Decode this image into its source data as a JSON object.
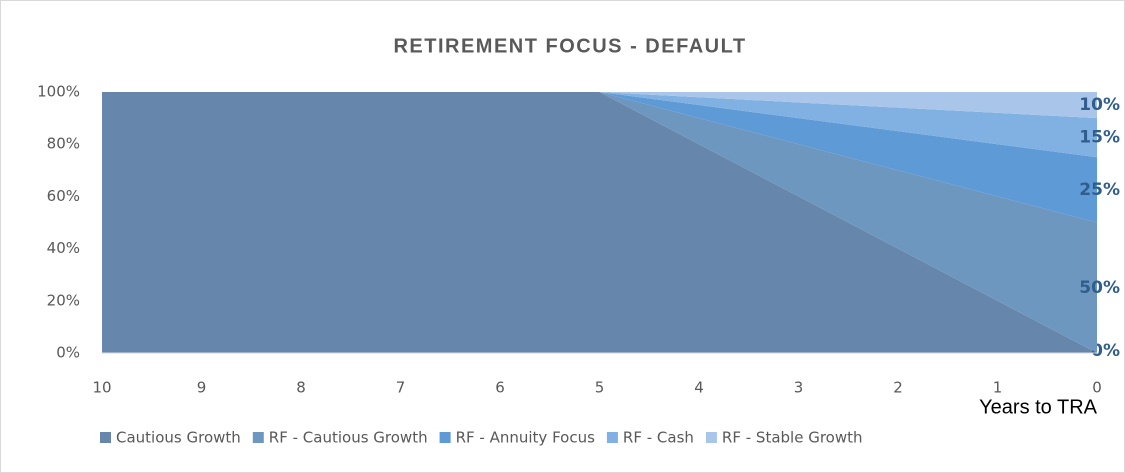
{
  "chart_data": {
    "type": "area",
    "stacked": true,
    "title": "RETIREMENT FOCUS - DEFAULT",
    "x_label": "Years to TRA",
    "x": [
      10,
      9,
      8,
      7,
      6,
      5,
      4,
      3,
      2,
      1,
      0
    ],
    "xlim": [
      10,
      0
    ],
    "xticks": [
      10,
      9,
      8,
      7,
      6,
      5,
      4,
      3,
      2,
      1,
      0
    ],
    "ylim": [
      0,
      100
    ],
    "yticks": [
      {
        "value": 0,
        "label": "0%"
      },
      {
        "value": 20,
        "label": "20%"
      },
      {
        "value": 40,
        "label": "40%"
      },
      {
        "value": 60,
        "label": "60%"
      },
      {
        "value": 80,
        "label": "80%"
      },
      {
        "value": 100,
        "label": "100%"
      }
    ],
    "legend": "bottom",
    "series": [
      {
        "name": "Cautious Growth",
        "color": "#6687ab",
        "values": [
          100,
          100,
          100,
          100,
          100,
          100,
          80,
          60,
          40,
          20,
          0
        ],
        "value_labels": [
          null,
          null,
          null,
          null,
          null,
          null,
          null,
          null,
          null,
          null,
          "0%"
        ]
      },
      {
        "name": "RF - Cautious Growth",
        "color": "#6e97c0",
        "values": [
          0,
          0,
          0,
          0,
          0,
          0,
          10,
          20,
          30,
          40,
          50
        ],
        "value_labels": [
          null,
          null,
          null,
          null,
          null,
          null,
          null,
          null,
          null,
          null,
          "50%"
        ]
      },
      {
        "name": "RF - Annuity Focus",
        "color": "#5e9ad6",
        "values": [
          0,
          0,
          0,
          0,
          0,
          0,
          5,
          10,
          15,
          20,
          25
        ],
        "value_labels": [
          null,
          null,
          null,
          null,
          null,
          null,
          null,
          null,
          null,
          null,
          "25%"
        ]
      },
      {
        "name": "RF - Cash",
        "color": "#80b1e2",
        "values": [
          0,
          0,
          0,
          0,
          0,
          0,
          3,
          6,
          9,
          12,
          15
        ],
        "value_labels": [
          null,
          null,
          null,
          null,
          null,
          null,
          null,
          null,
          null,
          null,
          "15%"
        ]
      },
      {
        "name": "RF - Stable Growth",
        "color": "#a9c5ea",
        "values": [
          0,
          0,
          0,
          0,
          0,
          0,
          2,
          4,
          6,
          8,
          10
        ],
        "value_labels": [
          null,
          null,
          null,
          null,
          null,
          null,
          null,
          null,
          null,
          null,
          "10%"
        ]
      }
    ]
  }
}
